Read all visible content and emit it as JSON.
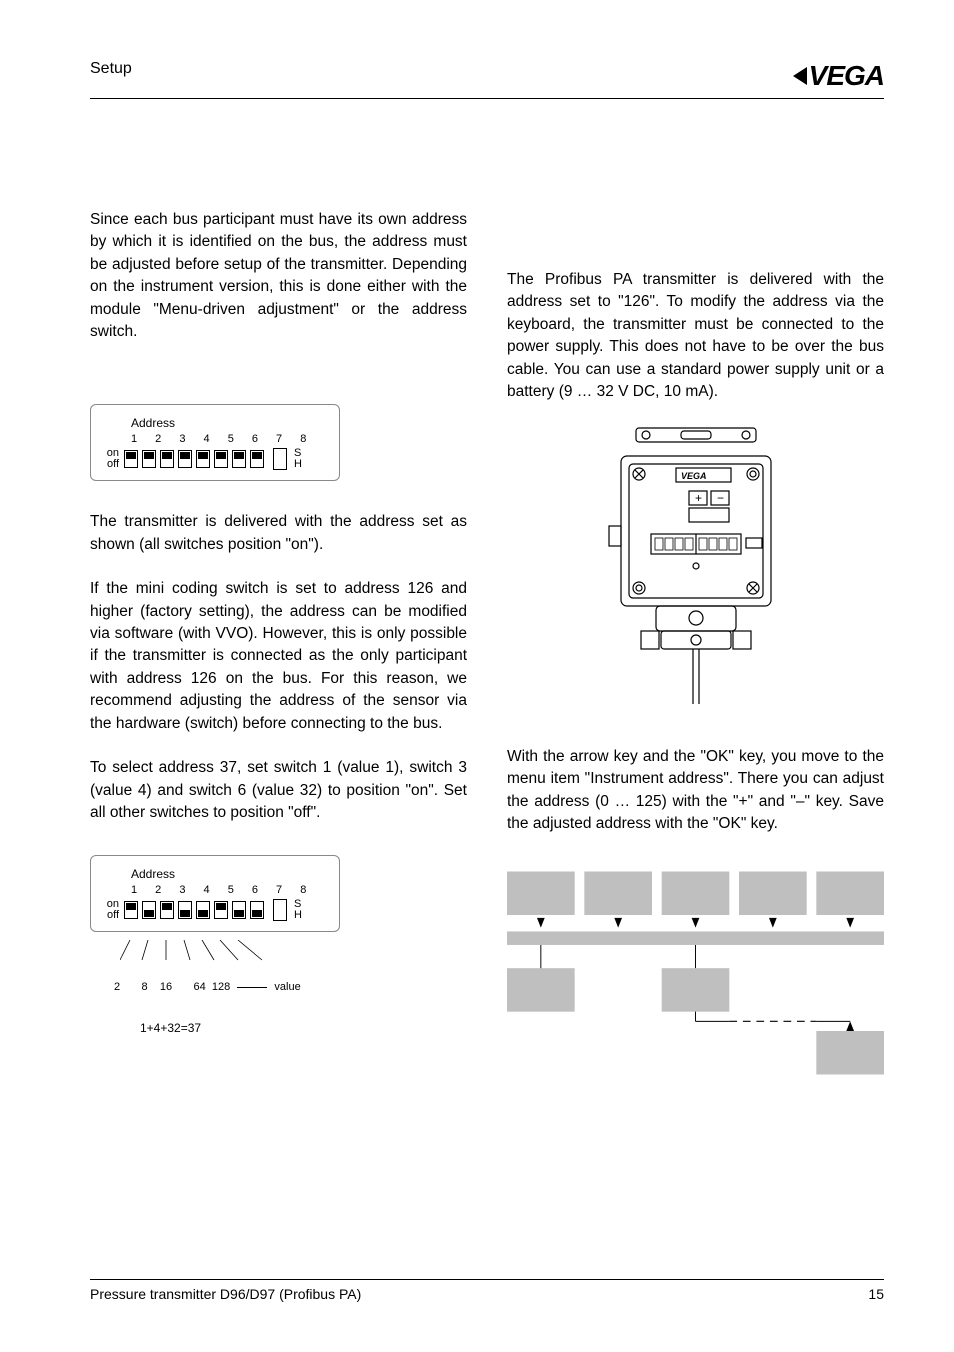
{
  "header": {
    "section": "Setup",
    "logo": "VEGA"
  },
  "footer": {
    "title": "Pressure transmitter D96/D97 (Profibus PA)",
    "page": "15"
  },
  "left": {
    "p1": "Since each bus participant must have its own address by which it is identified on the bus, the address must be adjusted before setup of the transmitter. Depending on the instrument version, this is done either with the module \"Menu-driven adjustment\" or the address switch.",
    "dip": {
      "label": "Address",
      "numbers": "1 2 3 4 5 6 7 8",
      "on": "on",
      "off": "off",
      "s": "S",
      "h": "H",
      "states_all_on": [
        "on",
        "on",
        "on",
        "on",
        "on",
        "on",
        "on",
        "on"
      ],
      "states_37": [
        "on",
        "off",
        "on",
        "off",
        "off",
        "on",
        "off",
        "off"
      ]
    },
    "p2": "The transmitter is delivered with the address set as shown (all switches position \"on\").",
    "p3": "If the mini coding switch is set to address 126 and higher (factory setting), the address can be modified via software (with VVO). However, this is only possible if the transmitter is connected as the only participant with address 126 on the bus. For this reason, we recommend adjusting the address of the sensor via the hardware (switch) before connecting to the bus.",
    "p4": "To select address 37, set switch 1 (value 1), switch 3 (value 4) and switch 6 (value 32) to position \"on\". Set all other switches to position \"off\".",
    "values": {
      "v2": "2",
      "v8": "8",
      "v16": "16",
      "v64": "64",
      "v128": "128",
      "value_label": "value",
      "calc": "1+4+32=37"
    }
  },
  "right": {
    "p1": "The Profibus PA transmitter is delivered with the address set to \"126\". To modify the address via the keyboard, the transmitter must be connected to the power supply. This does not have to be over the bus cable. You can use a standard power supply unit or a battery (9 … 32 V DC,  10 mA).",
    "p2": "With the arrow key and the \"OK\" key, you move to the menu item \"Instrument address\". There you can adjust the address (0 … 125) with the \"+\" and \"–\" key. Save the adjusted address with the \"OK\" key.",
    "device_logo": "VEGA"
  },
  "colors": {
    "text": "#000000",
    "bg": "#ffffff",
    "gray": "#bfbfbf",
    "line": "#000000"
  }
}
